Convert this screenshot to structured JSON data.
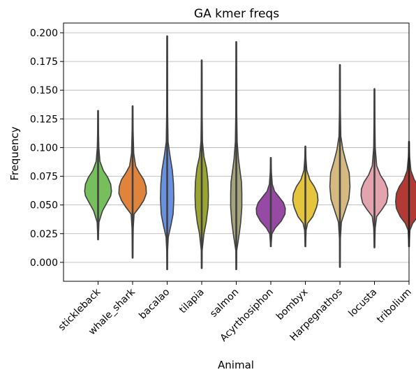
{
  "chart_data": {
    "type": "violin",
    "title": "GA kmer freqs",
    "xlabel": "Animal",
    "ylabel": "Frequency",
    "ylim": [
      -0.0165,
      0.2085
    ],
    "yticks": [
      0.0,
      0.025,
      0.05,
      0.075,
      0.1,
      0.125,
      0.15,
      0.175,
      0.2
    ],
    "ytick_labels": [
      "0.000",
      "0.025",
      "0.050",
      "0.075",
      "0.100",
      "0.125",
      "0.150",
      "0.175",
      "0.200"
    ],
    "grid": "horizontal",
    "categories": [
      "stickleback",
      "whale_shark",
      "bacalao",
      "tilapia",
      "salmon",
      "Acyrthosiphon",
      "bombyx",
      "Harpegnathos",
      "locusta",
      "tribolium"
    ],
    "series": [
      {
        "category": "stickleback",
        "color": "#77bf5c",
        "min": 0.02,
        "max": 0.132,
        "profile": [
          [
            0.02,
            0.003
          ],
          [
            0.035,
            0.012
          ],
          [
            0.045,
            0.06
          ],
          [
            0.052,
            0.12
          ],
          [
            0.058,
            0.17
          ],
          [
            0.062,
            0.18
          ],
          [
            0.068,
            0.17
          ],
          [
            0.074,
            0.13
          ],
          [
            0.08,
            0.07
          ],
          [
            0.088,
            0.025
          ],
          [
            0.1,
            0.01
          ],
          [
            0.115,
            0.006
          ],
          [
            0.132,
            0.003
          ]
        ]
      },
      {
        "category": "whale_shark",
        "color": "#e0843d",
        "min": 0.004,
        "max": 0.136,
        "profile": [
          [
            0.004,
            0.003
          ],
          [
            0.03,
            0.008
          ],
          [
            0.042,
            0.02
          ],
          [
            0.048,
            0.09
          ],
          [
            0.054,
            0.15
          ],
          [
            0.06,
            0.185
          ],
          [
            0.066,
            0.18
          ],
          [
            0.072,
            0.15
          ],
          [
            0.078,
            0.09
          ],
          [
            0.084,
            0.04
          ],
          [
            0.095,
            0.015
          ],
          [
            0.115,
            0.007
          ],
          [
            0.136,
            0.003
          ]
        ]
      },
      {
        "category": "bacalao",
        "color": "#6a90e0",
        "min": -0.006,
        "max": 0.197,
        "profile": [
          [
            -0.006,
            0.003
          ],
          [
            0.01,
            0.006
          ],
          [
            0.022,
            0.015
          ],
          [
            0.032,
            0.05
          ],
          [
            0.042,
            0.08
          ],
          [
            0.055,
            0.09
          ],
          [
            0.068,
            0.085
          ],
          [
            0.08,
            0.07
          ],
          [
            0.092,
            0.04
          ],
          [
            0.105,
            0.012
          ],
          [
            0.13,
            0.007
          ],
          [
            0.16,
            0.005
          ],
          [
            0.197,
            0.003
          ]
        ]
      },
      {
        "category": "tilapia",
        "color": "#9aa430",
        "min": -0.005,
        "max": 0.176,
        "profile": [
          [
            -0.005,
            0.003
          ],
          [
            0.01,
            0.006
          ],
          [
            0.025,
            0.03
          ],
          [
            0.035,
            0.06
          ],
          [
            0.048,
            0.085
          ],
          [
            0.058,
            0.09
          ],
          [
            0.07,
            0.085
          ],
          [
            0.082,
            0.065
          ],
          [
            0.092,
            0.03
          ],
          [
            0.105,
            0.01
          ],
          [
            0.13,
            0.006
          ],
          [
            0.15,
            0.005
          ],
          [
            0.176,
            0.003
          ]
        ]
      },
      {
        "category": "salmon",
        "color": "#a4a37c",
        "min": -0.006,
        "max": 0.192,
        "profile": [
          [
            -0.006,
            0.003
          ],
          [
            0.01,
            0.006
          ],
          [
            0.025,
            0.04
          ],
          [
            0.035,
            0.06
          ],
          [
            0.048,
            0.075
          ],
          [
            0.06,
            0.075
          ],
          [
            0.07,
            0.07
          ],
          [
            0.08,
            0.05
          ],
          [
            0.09,
            0.03
          ],
          [
            0.105,
            0.012
          ],
          [
            0.13,
            0.007
          ],
          [
            0.16,
            0.005
          ],
          [
            0.192,
            0.003
          ]
        ]
      },
      {
        "category": "Acyrthosiphon",
        "color": "#974aa4",
        "min": 0.014,
        "max": 0.091,
        "profile": [
          [
            0.014,
            0.003
          ],
          [
            0.025,
            0.015
          ],
          [
            0.03,
            0.06
          ],
          [
            0.036,
            0.14
          ],
          [
            0.042,
            0.19
          ],
          [
            0.047,
            0.195
          ],
          [
            0.052,
            0.17
          ],
          [
            0.057,
            0.11
          ],
          [
            0.062,
            0.05
          ],
          [
            0.068,
            0.02
          ],
          [
            0.078,
            0.008
          ],
          [
            0.091,
            0.003
          ]
        ]
      },
      {
        "category": "bombyx",
        "color": "#e5c43e",
        "min": 0.014,
        "max": 0.101,
        "profile": [
          [
            0.014,
            0.003
          ],
          [
            0.028,
            0.01
          ],
          [
            0.034,
            0.03
          ],
          [
            0.04,
            0.1
          ],
          [
            0.048,
            0.15
          ],
          [
            0.054,
            0.17
          ],
          [
            0.06,
            0.16
          ],
          [
            0.066,
            0.12
          ],
          [
            0.072,
            0.06
          ],
          [
            0.08,
            0.02
          ],
          [
            0.09,
            0.008
          ],
          [
            0.101,
            0.003
          ]
        ]
      },
      {
        "category": "Harpegnathos",
        "color": "#d5b980",
        "min": -0.004,
        "max": 0.172,
        "profile": [
          [
            -0.004,
            0.003
          ],
          [
            0.02,
            0.006
          ],
          [
            0.035,
            0.02
          ],
          [
            0.045,
            0.07
          ],
          [
            0.055,
            0.12
          ],
          [
            0.066,
            0.135
          ],
          [
            0.078,
            0.125
          ],
          [
            0.088,
            0.08
          ],
          [
            0.098,
            0.04
          ],
          [
            0.11,
            0.012
          ],
          [
            0.135,
            0.006
          ],
          [
            0.172,
            0.003
          ]
        ]
      },
      {
        "category": "locusta",
        "color": "#e3a4b0",
        "min": 0.013,
        "max": 0.151,
        "profile": [
          [
            0.013,
            0.003
          ],
          [
            0.03,
            0.01
          ],
          [
            0.04,
            0.03
          ],
          [
            0.046,
            0.1
          ],
          [
            0.052,
            0.16
          ],
          [
            0.058,
            0.18
          ],
          [
            0.064,
            0.175
          ],
          [
            0.07,
            0.14
          ],
          [
            0.076,
            0.08
          ],
          [
            0.084,
            0.03
          ],
          [
            0.1,
            0.01
          ],
          [
            0.125,
            0.006
          ],
          [
            0.151,
            0.003
          ]
        ]
      },
      {
        "category": "tribolium",
        "color": "#b33a34",
        "min": 0.014,
        "max": 0.105,
        "profile": [
          [
            0.014,
            0.003
          ],
          [
            0.028,
            0.012
          ],
          [
            0.034,
            0.05
          ],
          [
            0.04,
            0.12
          ],
          [
            0.047,
            0.17
          ],
          [
            0.053,
            0.18
          ],
          [
            0.06,
            0.17
          ],
          [
            0.066,
            0.13
          ],
          [
            0.072,
            0.07
          ],
          [
            0.08,
            0.025
          ],
          [
            0.092,
            0.008
          ],
          [
            0.105,
            0.003
          ]
        ]
      }
    ]
  }
}
